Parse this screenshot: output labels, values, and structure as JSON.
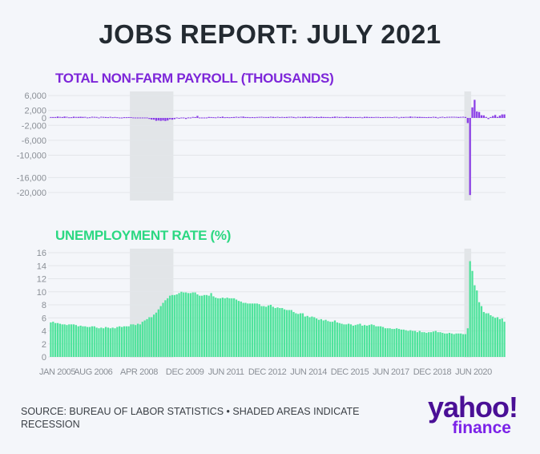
{
  "title": "JOBS REPORT: JULY 2021",
  "source": "SOURCE: BUREAU OF LABOR STATISTICS • SHADED AREAS INDICATE RECESSION",
  "logo": {
    "text": "yahoo!",
    "sub": "finance"
  },
  "colors": {
    "payroll": "#8a3ee6",
    "unemployment": "#4fe39c",
    "recession": "#e2e5e8",
    "grid": "#e3e6ea"
  },
  "recessions": [
    {
      "start": "DEC 2007",
      "end": "JUN 2009"
    },
    {
      "start": "FEB 2020",
      "end": "APR 2020"
    }
  ],
  "chart_data": [
    {
      "type": "bar",
      "title": "TOTAL NON-FARM PAYROLL (THOUSANDS)",
      "x_start": "JAN 2005",
      "x_end": "JUL 2021",
      "frequency": "monthly",
      "ylim": [
        -21000,
        7000
      ],
      "yticks": [
        6000,
        2000,
        0,
        -2000,
        -6000,
        -10000,
        -16000,
        -20000
      ],
      "ytick_labels": [
        "6,000",
        "2,000",
        "0",
        "-2,000",
        "-6,000",
        "-10,000",
        "-16,000",
        "-20,000"
      ],
      "values": [
        134,
        239,
        134,
        363,
        175,
        245,
        373,
        196,
        67,
        84,
        337,
        159,
        277,
        315,
        280,
        182,
        23,
        77,
        207,
        184,
        157,
        2,
        210,
        171,
        238,
        93,
        190,
        80,
        143,
        75,
        -34,
        -20,
        88,
        84,
        114,
        98,
        17,
        -84,
        -78,
        -210,
        -185,
        -165,
        -209,
        -266,
        -452,
        -473,
        -769,
        -695,
        -791,
        -703,
        -823,
        -687,
        -349,
        -471,
        -329,
        -212,
        -219,
        -200,
        -7,
        -279,
        28,
        -69,
        163,
        232,
        540,
        -182,
        -59,
        -18,
        -70,
        264,
        123,
        88,
        42,
        188,
        225,
        346,
        77,
        225,
        69,
        110,
        248,
        209,
        141,
        209,
        358,
        237,
        233,
        78,
        115,
        76,
        143,
        177,
        203,
        146,
        132,
        244,
        211,
        286,
        130,
        197,
        226,
        162,
        122,
        261,
        190,
        212,
        258,
        47,
        190,
        151,
        272,
        329,
        246,
        304,
        202,
        230,
        280,
        227,
        312,
        255,
        234,
        238,
        86,
        262,
        344,
        206,
        254,
        157,
        100,
        321,
        272,
        239,
        126,
        237,
        225,
        153,
        43,
        297,
        291,
        135,
        249,
        124,
        164,
        155,
        216,
        219,
        149,
        146,
        144,
        216,
        187,
        176,
        14,
        155,
        249,
        176,
        171,
        378,
        182,
        196,
        268,
        286,
        249,
        236,
        98,
        245,
        120,
        201,
        269,
        1,
        147,
        210,
        85,
        182,
        194,
        207,
        208,
        185,
        261,
        184,
        214,
        251,
        -1373,
        -20679,
        2833,
        4846,
        1726,
        1583,
        716,
        680,
        264,
        -306,
        233,
        536,
        785,
        269,
        614,
        938,
        943
      ]
    },
    {
      "type": "bar",
      "title": "UNEMPLOYMENT RATE (%)",
      "x_start": "JAN 2005",
      "x_end": "JUL 2021",
      "frequency": "monthly",
      "ylim": [
        0,
        16
      ],
      "yticks": [
        0,
        2,
        4,
        6,
        8,
        10,
        12,
        14,
        16
      ],
      "ytick_labels": [
        "0",
        "2",
        "4",
        "6",
        "8",
        "10",
        "12",
        "14",
        "16"
      ],
      "xtick_labels": [
        "JAN 2005",
        "AUG 2006",
        "APR 2008",
        "DEC 2009",
        "JUN 2011",
        "DEC 2012",
        "JUN 2014",
        "DEC 2015",
        "JUN 2017",
        "DEC 2018",
        "JUN 2020"
      ],
      "xtick_month_index": [
        0,
        19,
        39,
        59,
        77,
        95,
        113,
        131,
        149,
        167,
        185
      ],
      "values": [
        5.3,
        5.4,
        5.2,
        5.2,
        5.1,
        5.0,
        5.0,
        4.9,
        5.0,
        5.0,
        5.0,
        4.9,
        4.7,
        4.8,
        4.7,
        4.7,
        4.6,
        4.6,
        4.7,
        4.7,
        4.5,
        4.4,
        4.5,
        4.4,
        4.6,
        4.5,
        4.4,
        4.5,
        4.4,
        4.6,
        4.7,
        4.6,
        4.7,
        4.7,
        4.7,
        5.0,
        5.0,
        4.9,
        5.1,
        5.0,
        5.4,
        5.6,
        5.8,
        6.1,
        6.1,
        6.5,
        6.8,
        7.3,
        7.8,
        8.3,
        8.7,
        9.0,
        9.4,
        9.5,
        9.5,
        9.6,
        9.8,
        10.0,
        9.9,
        9.9,
        9.8,
        9.8,
        9.9,
        9.9,
        9.6,
        9.4,
        9.4,
        9.5,
        9.5,
        9.4,
        9.8,
        9.3,
        9.1,
        9.0,
        9.0,
        9.1,
        9.0,
        9.1,
        9.0,
        9.0,
        9.0,
        8.8,
        8.6,
        8.5,
        8.3,
        8.3,
        8.2,
        8.2,
        8.2,
        8.2,
        8.2,
        8.1,
        7.8,
        7.8,
        7.7,
        7.9,
        8.0,
        7.7,
        7.5,
        7.6,
        7.5,
        7.5,
        7.3,
        7.2,
        7.2,
        7.2,
        6.9,
        6.7,
        6.6,
        6.7,
        6.7,
        6.2,
        6.3,
        6.1,
        6.2,
        6.1,
        5.9,
        5.7,
        5.8,
        5.6,
        5.7,
        5.5,
        5.4,
        5.4,
        5.6,
        5.3,
        5.2,
        5.1,
        5.0,
        5.0,
        5.1,
        5.0,
        4.8,
        4.9,
        5.0,
        5.1,
        4.8,
        4.9,
        4.8,
        4.9,
        5.0,
        4.9,
        4.7,
        4.7,
        4.7,
        4.6,
        4.4,
        4.4,
        4.4,
        4.3,
        4.3,
        4.4,
        4.3,
        4.2,
        4.2,
        4.1,
        4.0,
        4.1,
        4.0,
        4.0,
        3.8,
        4.0,
        3.8,
        3.8,
        3.7,
        3.8,
        3.8,
        3.9,
        4.0,
        3.8,
        3.8,
        3.7,
        3.6,
        3.6,
        3.7,
        3.6,
        3.5,
        3.6,
        3.6,
        3.6,
        3.5,
        3.5,
        4.4,
        14.7,
        13.2,
        11.0,
        10.2,
        8.4,
        7.8,
        6.9,
        6.7,
        6.7,
        6.4,
        6.2,
        6.0,
        6.1,
        5.8,
        5.9,
        5.4
      ]
    }
  ]
}
